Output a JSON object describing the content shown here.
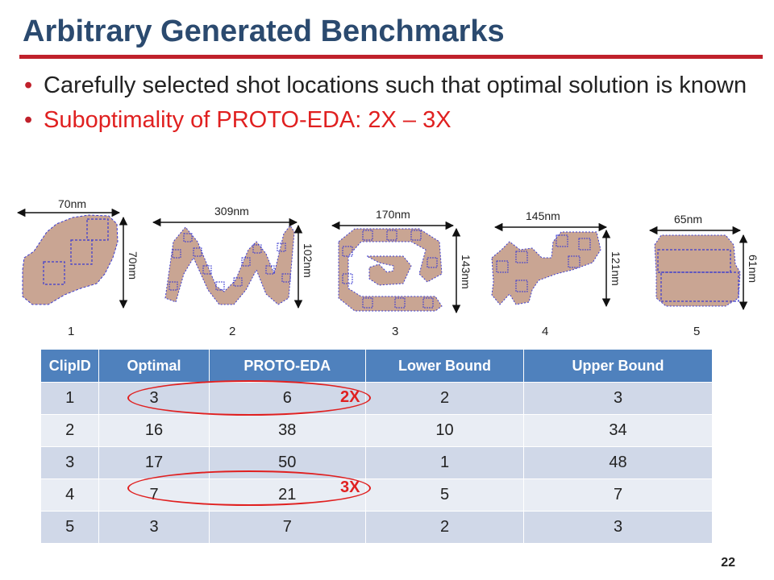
{
  "title": "Arbitrary Generated Benchmarks",
  "bullets": [
    "Carefully selected shot locations such that optimal solution is known",
    "Suboptimality of PROTO-EDA: 2X – 3X"
  ],
  "clips": [
    {
      "id": "1",
      "width": "70nm",
      "height": "70nm"
    },
    {
      "id": "2",
      "width": "309nm",
      "height": "102nm"
    },
    {
      "id": "3",
      "width": "170nm",
      "height": "143nm"
    },
    {
      "id": "4",
      "width": "145nm",
      "height": "121nm"
    },
    {
      "id": "5",
      "width": "65nm",
      "height": "61nm"
    }
  ],
  "table": {
    "headers": [
      "ClipID",
      "Optimal",
      "PROTO-EDA",
      "Lower Bound",
      "Upper Bound"
    ],
    "rows": [
      [
        "1",
        "3",
        "6",
        "2",
        "3"
      ],
      [
        "2",
        "16",
        "38",
        "10",
        "34"
      ],
      [
        "3",
        "17",
        "50",
        "1",
        "48"
      ],
      [
        "4",
        "7",
        "21",
        "5",
        "7"
      ],
      [
        "5",
        "3",
        "7",
        "2",
        "3"
      ]
    ]
  },
  "annotations": {
    "row1": "2X",
    "row4": "3X"
  },
  "page_number": "22",
  "colors": {
    "title": "#2b4a6f",
    "rule": "#c0212b",
    "highlight": "#e02020",
    "header": "#4f81bd",
    "shape_fill": "#c9a593",
    "shot": "#3b3bd0"
  }
}
